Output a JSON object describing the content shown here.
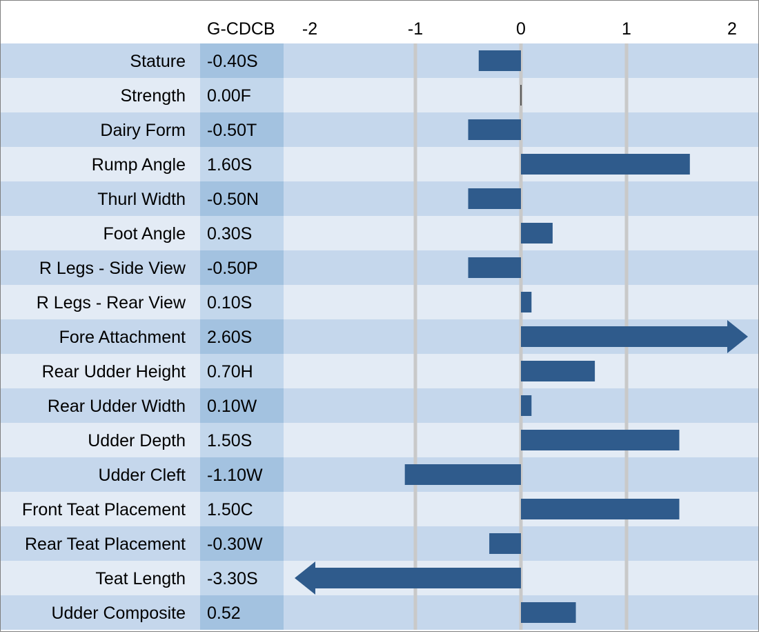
{
  "header": {
    "column_label": "G-CDCB"
  },
  "colors": {
    "row_dark": "#c5d7ec",
    "row_light": "#e3ebf5",
    "value_col_dark": "#a3c2e0",
    "value_col_light": "#c3d7ec",
    "bar": "#2f5b8c",
    "gridline": "#c9c9c9",
    "border": "#7f7f7f"
  },
  "chart_data": {
    "type": "bar",
    "orientation": "horizontal",
    "xlim": [
      -2,
      2
    ],
    "x_ticks": [
      "-2",
      "-1",
      "0",
      "1",
      "2"
    ],
    "grid": true,
    "categories": [
      "Stature",
      "Strength",
      "Dairy Form",
      "Rump Angle",
      "Thurl Width",
      "Foot Angle",
      "R Legs - Side View",
      "R Legs - Rear View",
      "Fore Attachment",
      "Rear Udder Height",
      "Rear Udder Width",
      "Udder Depth",
      "Udder Cleft",
      "Front Teat Placement",
      "Rear Teat Placement",
      "Teat Length",
      "Udder Composite"
    ],
    "value_labels": [
      "-0.40S",
      "0.00F",
      "-0.50T",
      "1.60S",
      "-0.50N",
      "0.30S",
      "-0.50P",
      "0.10S",
      "2.60S",
      "0.70H",
      "0.10W",
      "1.50S",
      "-1.10W",
      "1.50C",
      "-0.30W",
      "-3.30S",
      "0.52"
    ],
    "values": [
      -0.4,
      0.0,
      -0.5,
      1.6,
      -0.5,
      0.3,
      -0.5,
      0.1,
      2.6,
      0.7,
      0.1,
      1.5,
      -1.1,
      1.5,
      -0.3,
      -3.3,
      0.52
    ]
  }
}
